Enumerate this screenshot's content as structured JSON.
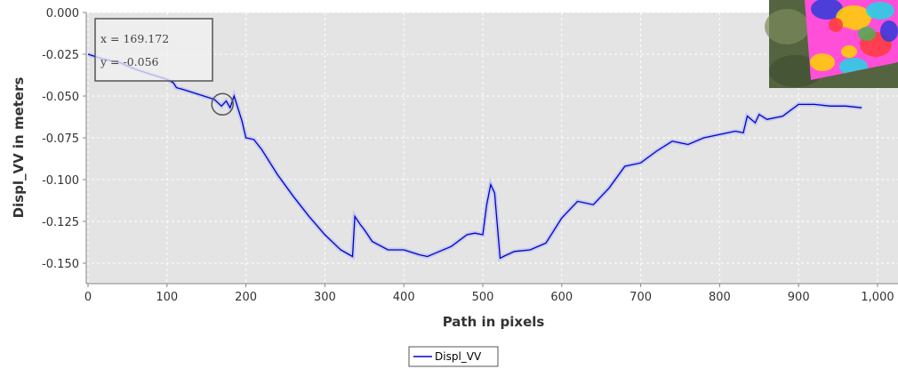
{
  "chart_data": {
    "type": "line",
    "xlabel": "Path in pixels",
    "ylabel": "Displ_VV in meters",
    "xlim": [
      0,
      1000
    ],
    "ylim": [
      -0.16,
      0.0
    ],
    "x_ticks": [
      0,
      100,
      200,
      300,
      400,
      500,
      600,
      700,
      800,
      900,
      1000
    ],
    "x_tick_labels": [
      "0",
      "100",
      "200",
      "300",
      "400",
      "500",
      "600",
      "700",
      "800",
      "900",
      "1,000"
    ],
    "y_ticks": [
      0.0,
      -0.025,
      -0.05,
      -0.075,
      -0.1,
      -0.125,
      -0.15
    ],
    "y_tick_labels": [
      "0.000",
      "-0.025",
      "-0.050",
      "-0.075",
      "-0.100",
      "-0.125",
      "-0.150"
    ],
    "grid": true,
    "legend_position": "bottom-center",
    "series": [
      {
        "name": "Displ_VV",
        "color": "#0000cc",
        "x": [
          0,
          20,
          40,
          60,
          80,
          100,
          108,
          112,
          120,
          140,
          160,
          169,
          175,
          180,
          185,
          195,
          200,
          210,
          220,
          240,
          260,
          280,
          300,
          320,
          335,
          338,
          345,
          350,
          360,
          380,
          400,
          420,
          430,
          440,
          460,
          480,
          490,
          500,
          505,
          510,
          515,
          518,
          522,
          526,
          540,
          560,
          580,
          600,
          620,
          640,
          660,
          680,
          700,
          720,
          740,
          760,
          780,
          800,
          820,
          830,
          835,
          840,
          845,
          850,
          860,
          880,
          900,
          920,
          940,
          960,
          980
        ],
        "y": [
          -0.025,
          -0.028,
          -0.03,
          -0.034,
          -0.037,
          -0.04,
          -0.042,
          -0.045,
          -0.046,
          -0.049,
          -0.052,
          -0.056,
          -0.053,
          -0.057,
          -0.05,
          -0.065,
          -0.075,
          -0.076,
          -0.082,
          -0.097,
          -0.11,
          -0.122,
          -0.133,
          -0.142,
          -0.146,
          -0.122,
          -0.127,
          -0.13,
          -0.137,
          -0.142,
          -0.142,
          -0.145,
          -0.146,
          -0.144,
          -0.14,
          -0.133,
          -0.132,
          -0.133,
          -0.115,
          -0.103,
          -0.108,
          -0.125,
          -0.147,
          -0.146,
          -0.143,
          -0.142,
          -0.138,
          -0.123,
          -0.113,
          -0.115,
          -0.105,
          -0.092,
          -0.09,
          -0.083,
          -0.077,
          -0.079,
          -0.075,
          -0.073,
          -0.071,
          -0.072,
          -0.062,
          -0.064,
          -0.066,
          -0.061,
          -0.064,
          -0.062,
          -0.055,
          -0.055,
          -0.056,
          -0.056,
          -0.057
        ]
      }
    ],
    "annotations": [
      {
        "type": "tooltip",
        "x_text": "x = 169.172",
        "y_text": "y = -0.056",
        "x": 169.172,
        "y": -0.056
      }
    ]
  },
  "inset": {
    "name": "sar-displacement-thumbnail",
    "colors": [
      "#4caf50",
      "#ff4fd8",
      "#2f3bd9",
      "#ffd400",
      "#1fd6e8",
      "#ff3b3b"
    ]
  }
}
